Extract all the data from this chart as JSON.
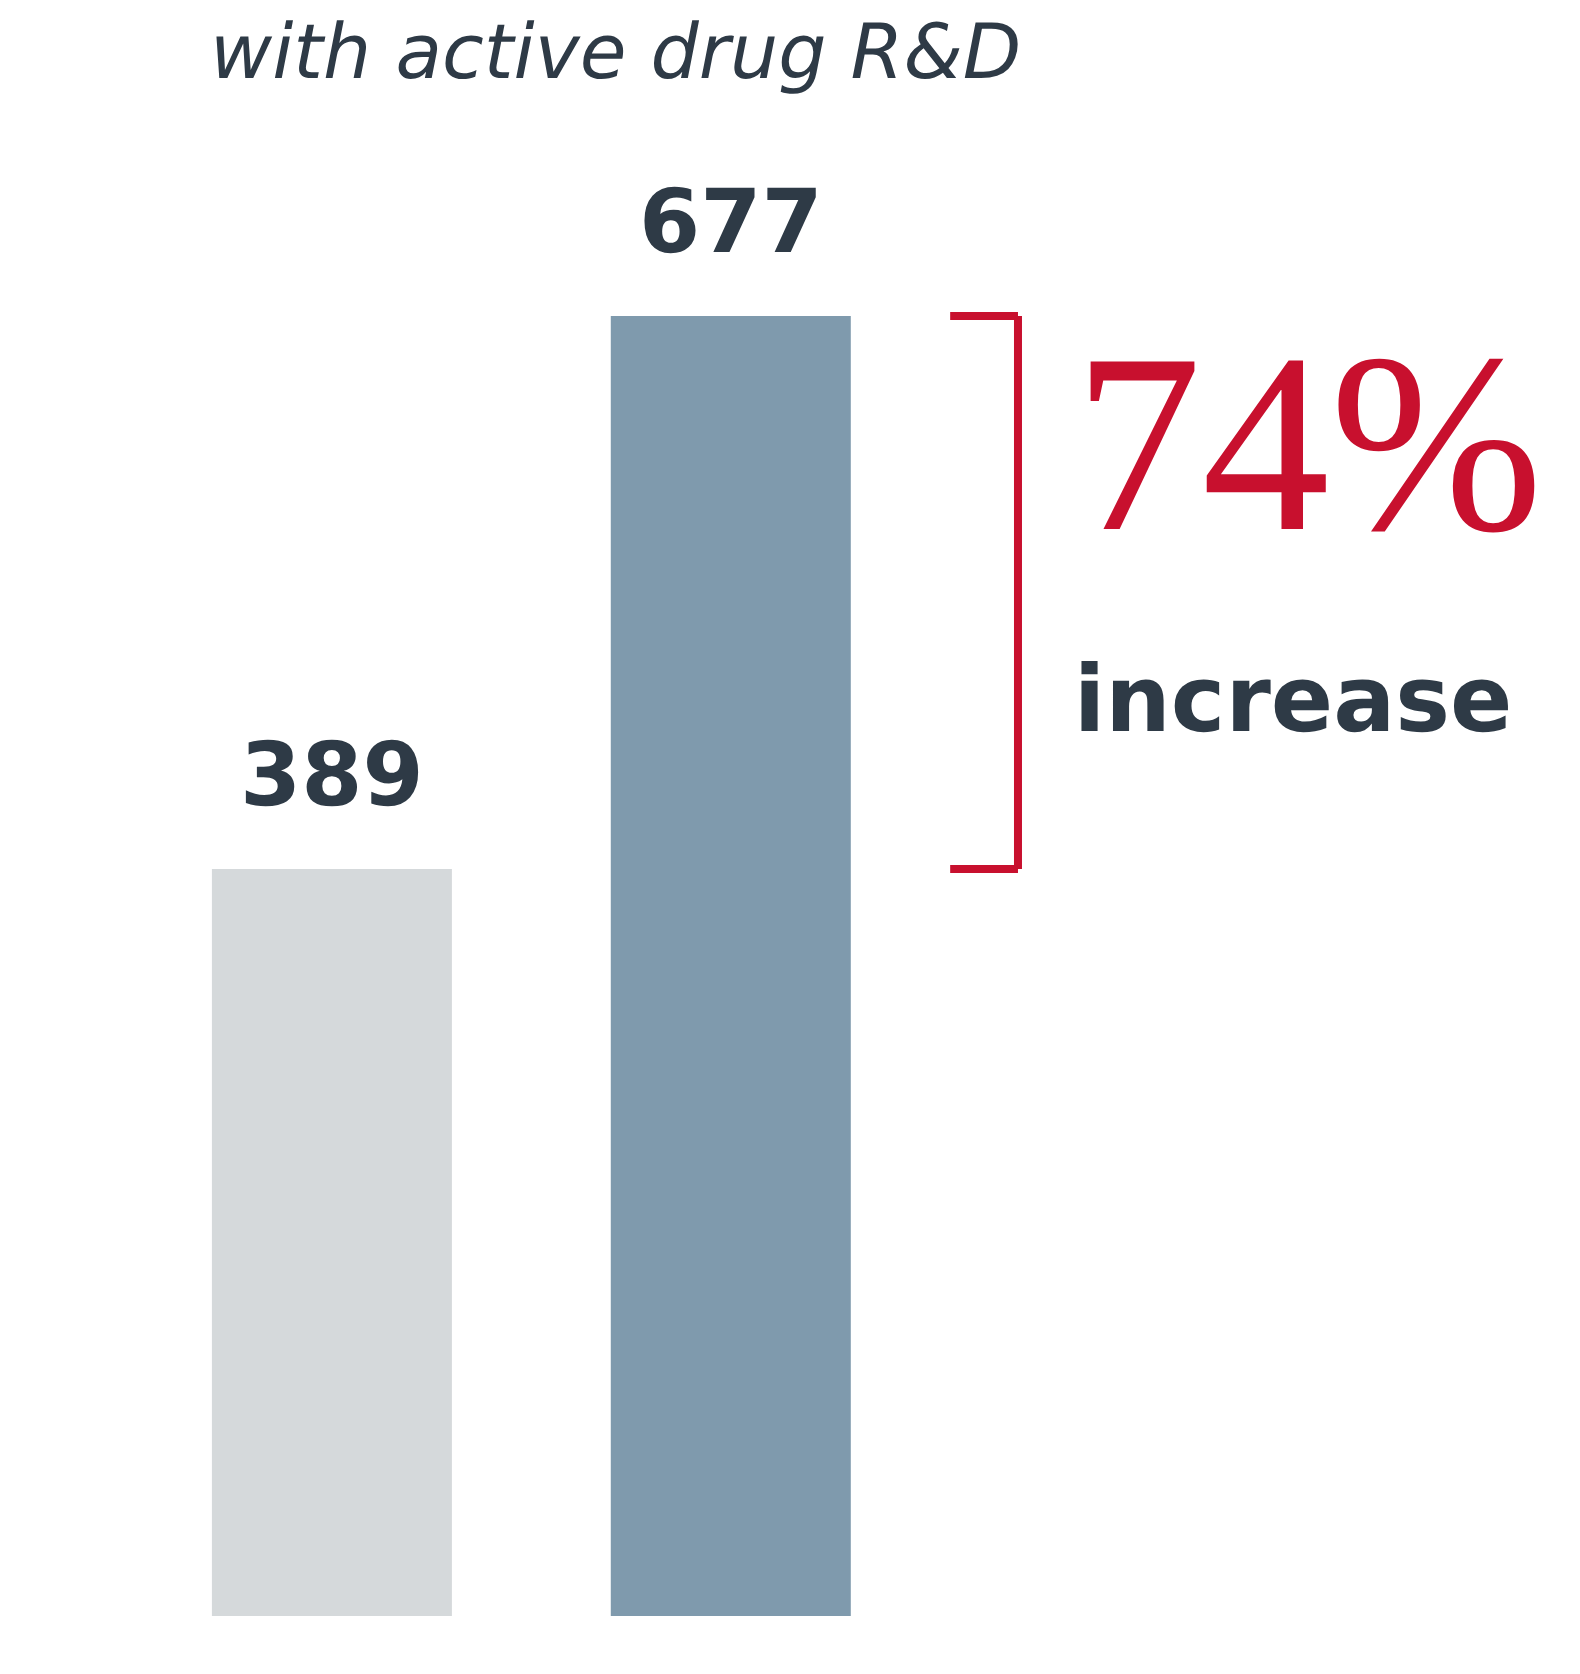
{
  "chart_data": {
    "type": "bar",
    "title": "with active drug R&D",
    "categories": [
      null,
      null
    ],
    "values": [
      389,
      677
    ],
    "colors": [
      "#d5d9db",
      "#7f9aad"
    ],
    "data_labels": true,
    "annotations": [
      "74%",
      "increase"
    ]
  }
}
